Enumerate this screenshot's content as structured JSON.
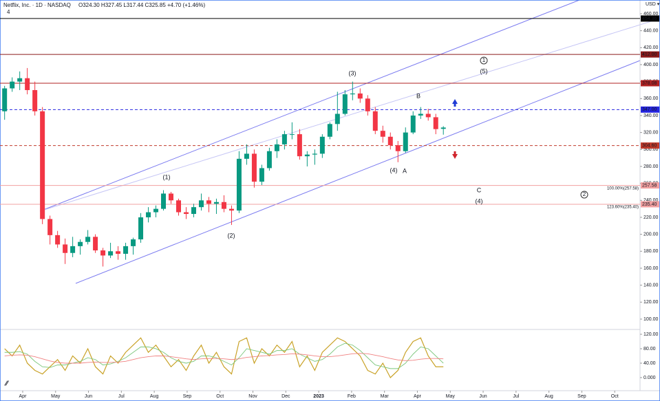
{
  "chart_data": {
    "type": "candlestick",
    "header": {
      "symbol": "Netflix, Inc. · 1D · NASDAQ",
      "ohlc": "O324.30 H327.45 L317.44 C325.85 +4.70 (+1.46%)",
      "indicators": "4",
      "currency": "USD ▾"
    },
    "x": [
      -0.55,
      -0.32,
      -0.09,
      0.14,
      0.37,
      0.6,
      0.83,
      1.06,
      1.29,
      1.52,
      1.75,
      1.98,
      2.21,
      2.44,
      2.67,
      2.9,
      3.13,
      3.36,
      3.59,
      3.82,
      4.05,
      4.28,
      4.51,
      4.74,
      4.97,
      5.2,
      5.43,
      5.66,
      5.89,
      6.12,
      6.35,
      6.58,
      6.81,
      7.04,
      7.27,
      7.5,
      7.73,
      7.96,
      8.19,
      8.42,
      8.65,
      8.88,
      9.11,
      9.34,
      9.57,
      9.8,
      10.03,
      10.26,
      10.49,
      10.72,
      10.95,
      11.18,
      11.41,
      11.64,
      11.87,
      12.1,
      12.33,
      12.56,
      12.79
    ],
    "open": [
      345,
      372,
      380,
      384,
      370,
      345,
      218,
      199,
      188,
      178,
      186,
      191,
      197,
      181,
      175,
      180,
      177,
      186,
      194,
      220,
      226,
      230,
      248,
      240,
      226,
      224,
      232,
      240,
      236,
      238,
      230,
      228,
      289,
      295,
      262,
      278,
      298,
      306,
      318,
      318,
      292,
      294,
      295,
      315,
      330,
      342,
      365,
      366,
      360,
      345,
      322,
      315,
      305,
      298,
      320,
      340,
      342,
      338,
      324.3
    ],
    "high": [
      375,
      385,
      392,
      396,
      380,
      350,
      222,
      204,
      195,
      197,
      194,
      205,
      200,
      184,
      190,
      186,
      190,
      196,
      225,
      232,
      234,
      252,
      250,
      242,
      232,
      236,
      248,
      244,
      242,
      246,
      234,
      298,
      306,
      300,
      282,
      302,
      312,
      322,
      332,
      324,
      298,
      300,
      318,
      332,
      368,
      370,
      380,
      372,
      364,
      350,
      328,
      320,
      310,
      326,
      345,
      350,
      348,
      342,
      327.45
    ],
    "low": [
      335,
      368,
      370,
      365,
      340,
      212,
      188,
      184,
      165,
      173,
      176,
      188,
      178,
      162,
      172,
      170,
      170,
      176,
      190,
      214,
      220,
      228,
      236,
      222,
      218,
      220,
      228,
      226,
      224,
      226,
      211,
      225,
      282,
      255,
      258,
      275,
      290,
      300,
      312,
      288,
      280,
      282,
      290,
      312,
      322,
      340,
      358,
      355,
      340,
      318,
      308,
      300,
      285,
      296,
      318,
      336,
      334,
      318,
      317.44
    ],
    "close": [
      372,
      380,
      384,
      370,
      345,
      218,
      199,
      188,
      178,
      186,
      191,
      197,
      181,
      175,
      180,
      177,
      186,
      194,
      220,
      226,
      230,
      248,
      240,
      226,
      224,
      232,
      240,
      236,
      238,
      230,
      228,
      289,
      295,
      262,
      278,
      298,
      306,
      318,
      318,
      292,
      294,
      295,
      315,
      330,
      342,
      365,
      366,
      360,
      345,
      322,
      315,
      305,
      298,
      320,
      340,
      342,
      338,
      324,
      325.85
    ],
    "up_color": "#089981",
    "down_color": "#f23645",
    "xlim": [
      -0.69,
      18.77
    ],
    "xticks": [
      {
        "value": 0,
        "label": "Apr"
      },
      {
        "value": 1,
        "label": "May"
      },
      {
        "value": 2,
        "label": "Jun"
      },
      {
        "value": 3,
        "label": "Jul"
      },
      {
        "value": 4,
        "label": "Aug"
      },
      {
        "value": 5,
        "label": "Sep"
      },
      {
        "value": 6,
        "label": "Oct"
      },
      {
        "value": 7,
        "label": "Nov"
      },
      {
        "value": 8,
        "label": "Dec"
      },
      {
        "value": 9,
        "label": "2023"
      },
      {
        "value": 10,
        "label": "Feb"
      },
      {
        "value": 11,
        "label": "Mar"
      },
      {
        "value": 12,
        "label": "Apr"
      },
      {
        "value": 13,
        "label": "May"
      },
      {
        "value": 14,
        "label": "Jun"
      },
      {
        "value": 15,
        "label": "Jul"
      },
      {
        "value": 16,
        "label": "Aug"
      },
      {
        "value": 17,
        "label": "Sep"
      },
      {
        "value": 18,
        "label": "Oct"
      }
    ],
    "ylim": [
      88.6,
      476.2
    ],
    "yticks": [
      {
        "value": 100,
        "label": "100.00"
      },
      {
        "value": 120,
        "label": "120.00"
      },
      {
        "value": 140,
        "label": "140.00"
      },
      {
        "value": 160,
        "label": "160.00"
      },
      {
        "value": 180,
        "label": "180.00"
      },
      {
        "value": 200,
        "label": "200.00"
      },
      {
        "value": 220,
        "label": "220.00"
      },
      {
        "value": 240,
        "label": "240.00"
      },
      {
        "value": 260,
        "label": "260.00"
      },
      {
        "value": 280,
        "label": "280.00"
      },
      {
        "value": 300,
        "label": "300.00"
      },
      {
        "value": 320,
        "label": "320.00"
      },
      {
        "value": 340,
        "label": "340.00"
      },
      {
        "value": 360,
        "label": "360.00"
      },
      {
        "value": 380,
        "label": "380.00"
      },
      {
        "value": 400,
        "label": "400.00"
      },
      {
        "value": 420,
        "label": "420.00"
      },
      {
        "value": 440,
        "label": "440.00"
      },
      {
        "value": 460,
        "label": "460.00"
      }
    ],
    "levels": [
      {
        "value": 454.36,
        "label": "454.36",
        "color": "#000000",
        "dashed": false
      },
      {
        "value": 412,
        "label": "412.00",
        "color": "#8b1a1a",
        "dashed": false
      },
      {
        "value": 378.08,
        "label": "378.08",
        "color": "#b22222",
        "dashed": false
      },
      {
        "value": 347,
        "label": "347.00",
        "color": "#2424e0",
        "dashed": true
      },
      {
        "value": 304.6,
        "label": "304.60",
        "color": "#c0392b",
        "dashed": true
      },
      {
        "value": 257.58,
        "label": "257.58",
        "color": "#f2a0a0",
        "dashed": false
      },
      {
        "value": 235.4,
        "label": "235.40",
        "color": "#f2a0a0",
        "dashed": false
      }
    ],
    "annotations": [
      {
        "text": "(1)",
        "color": "#3a3ad6"
      },
      {
        "text": "(2)",
        "color": "#3a3ad6"
      },
      {
        "text": "(3)",
        "color": "#3a3ad6"
      },
      {
        "text": "(4)",
        "color": "#3a3ad6"
      },
      {
        "text": "(5)",
        "color": "#3a3ad6"
      },
      {
        "text": "A",
        "color": "#e05050"
      },
      {
        "text": "B",
        "color": "#e05050"
      },
      {
        "text": "C",
        "color": "#e05050"
      },
      {
        "text": "(4)",
        "color": "#e05050"
      },
      {
        "text": "1",
        "color": "#333333"
      },
      {
        "text": "2",
        "color": "#333333"
      },
      {
        "text": "100.00%(257.58)",
        "color": "#e05050"
      },
      {
        "text": "123.60%(235.40)",
        "color": "#e05050"
      }
    ],
    "oscillator": {
      "ylim": [
        -36.2,
        131.4
      ],
      "yticks": [
        {
          "value": 0,
          "label": "0.000"
        },
        {
          "value": 40,
          "label": "40.00"
        },
        {
          "value": 80,
          "label": "80.00"
        },
        {
          "value": 120,
          "label": "120.00"
        }
      ],
      "series": [
        {
          "color": "#c9a227",
          "values": [
            80,
            60,
            90,
            40,
            20,
            10,
            30,
            50,
            20,
            60,
            40,
            80,
            30,
            10,
            60,
            40,
            70,
            90,
            110,
            70,
            90,
            60,
            30,
            50,
            20,
            60,
            90,
            40,
            70,
            30,
            10,
            100,
            110,
            40,
            80,
            60,
            90,
            70,
            100,
            30,
            60,
            20,
            70,
            90,
            110,
            100,
            80,
            60,
            20,
            10,
            40,
            0,
            20,
            70,
            100,
            110,
            60,
            30,
            30
          ]
        },
        {
          "color": "#7bc67b",
          "values": [
            70,
            70,
            72,
            65,
            45,
            30,
            28,
            35,
            35,
            40,
            45,
            55,
            50,
            35,
            38,
            45,
            55,
            70,
            85,
            85,
            80,
            70,
            55,
            45,
            40,
            45,
            60,
            60,
            55,
            45,
            35,
            55,
            80,
            75,
            70,
            65,
            75,
            75,
            80,
            65,
            55,
            45,
            50,
            65,
            85,
            95,
            90,
            75,
            55,
            35,
            30,
            25,
            25,
            40,
            65,
            85,
            80,
            60,
            40
          ]
        },
        {
          "color": "#f08080",
          "values": [
            60,
            62,
            63,
            62,
            58,
            52,
            46,
            42,
            40,
            40,
            40,
            42,
            43,
            42,
            42,
            43,
            45,
            50,
            55,
            58,
            60,
            60,
            58,
            55,
            52,
            50,
            52,
            53,
            53,
            52,
            50,
            52,
            56,
            58,
            60,
            61,
            63,
            64,
            66,
            65,
            63,
            60,
            58,
            58,
            60,
            63,
            66,
            67,
            66,
            62,
            58,
            53,
            49,
            47,
            48,
            51,
            53,
            53,
            52
          ]
        }
      ]
    }
  }
}
